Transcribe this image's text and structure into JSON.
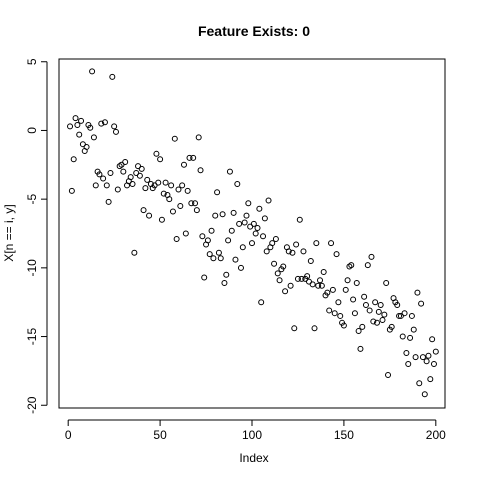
{
  "chart_data": {
    "type": "scatter",
    "title": "Feature Exists: 0",
    "xlabel": "Index",
    "ylabel": "X[n == i, y]",
    "xlim": [
      -5,
      205
    ],
    "ylim": [
      -20.2,
      5.2
    ],
    "grid": false,
    "x_ticks": [
      0,
      50,
      100,
      150,
      200
    ],
    "y_ticks": [
      5,
      0,
      -5,
      -10,
      -15,
      -20
    ],
    "x_tick_labels": [
      "0",
      "50",
      "100",
      "150",
      "200"
    ],
    "y_tick_labels": [
      "5",
      "0",
      "-5",
      "-10",
      "-15",
      "-20"
    ],
    "points": [
      [
        1,
        0.3
      ],
      [
        2,
        -4.4
      ],
      [
        3,
        -2.1
      ],
      [
        4,
        0.9
      ],
      [
        5,
        0.4
      ],
      [
        6,
        -0.3
      ],
      [
        7,
        0.7
      ],
      [
        8,
        -1.0
      ],
      [
        9,
        -1.5
      ],
      [
        10,
        -1.2
      ],
      [
        11,
        0.4
      ],
      [
        12,
        0.2
      ],
      [
        13,
        4.3
      ],
      [
        14,
        -0.5
      ],
      [
        15,
        -4.0
      ],
      [
        16,
        -3.0
      ],
      [
        17,
        -3.2
      ],
      [
        18,
        0.5
      ],
      [
        19,
        -3.5
      ],
      [
        20,
        0.6
      ],
      [
        21,
        -4.0
      ],
      [
        22,
        -5.2
      ],
      [
        23,
        -3.1
      ],
      [
        24,
        3.9
      ],
      [
        25,
        0.3
      ],
      [
        26,
        -0.1
      ],
      [
        27,
        -4.3
      ],
      [
        28,
        -2.6
      ],
      [
        29,
        -2.5
      ],
      [
        30,
        -3.0
      ],
      [
        31,
        -2.3
      ],
      [
        32,
        -4.0
      ],
      [
        33,
        -3.7
      ],
      [
        34,
        -3.4
      ],
      [
        35,
        -3.9
      ],
      [
        36,
        -8.9
      ],
      [
        37,
        -3.1
      ],
      [
        38,
        -2.6
      ],
      [
        39,
        -3.3
      ],
      [
        40,
        -2.8
      ],
      [
        41,
        -5.8
      ],
      [
        42,
        -4.2
      ],
      [
        43,
        -3.6
      ],
      [
        44,
        -6.2
      ],
      [
        45,
        -3.9
      ],
      [
        46,
        -4.2
      ],
      [
        47,
        -4.0
      ],
      [
        48,
        -1.7
      ],
      [
        49,
        -3.8
      ],
      [
        50,
        -2.1
      ],
      [
        51,
        -6.5
      ],
      [
        52,
        -4.6
      ],
      [
        53,
        -3.8
      ],
      [
        54,
        -4.7
      ],
      [
        55,
        -5.0
      ],
      [
        56,
        -4.0
      ],
      [
        57,
        -5.9
      ],
      [
        58,
        -0.6
      ],
      [
        59,
        -7.9
      ],
      [
        60,
        -4.3
      ],
      [
        61,
        -5.5
      ],
      [
        62,
        -4.0
      ],
      [
        63,
        -2.5
      ],
      [
        64,
        -7.5
      ],
      [
        65,
        -4.4
      ],
      [
        66,
        -2.0
      ],
      [
        67,
        -5.3
      ],
      [
        68,
        -2.0
      ],
      [
        69,
        -5.3
      ],
      [
        70,
        -5.8
      ],
      [
        71,
        -0.5
      ],
      [
        72,
        -2.9
      ],
      [
        73,
        -7.7
      ],
      [
        74,
        -10.7
      ],
      [
        75,
        -8.3
      ],
      [
        76,
        -8.0
      ],
      [
        77,
        -9.0
      ],
      [
        78,
        -7.3
      ],
      [
        79,
        -9.3
      ],
      [
        80,
        -6.2
      ],
      [
        81,
        -4.5
      ],
      [
        82,
        -8.9
      ],
      [
        83,
        -9.3
      ],
      [
        84,
        -6.1
      ],
      [
        85,
        -11.1
      ],
      [
        86,
        -10.5
      ],
      [
        87,
        -8.0
      ],
      [
        88,
        -3.0
      ],
      [
        89,
        -7.3
      ],
      [
        90,
        -6.0
      ],
      [
        91,
        -9.4
      ],
      [
        92,
        -3.9
      ],
      [
        93,
        -6.8
      ],
      [
        94,
        -10.0
      ],
      [
        95,
        -8.5
      ],
      [
        96,
        -6.7
      ],
      [
        97,
        -6.2
      ],
      [
        98,
        -5.3
      ],
      [
        99,
        -7.0
      ],
      [
        100,
        -8.2
      ],
      [
        101,
        -6.8
      ],
      [
        102,
        -7.5
      ],
      [
        103,
        -7.1
      ],
      [
        104,
        -5.7
      ],
      [
        105,
        -12.5
      ],
      [
        106,
        -7.7
      ],
      [
        107,
        -6.4
      ],
      [
        108,
        -8.8
      ],
      [
        109,
        -5.1
      ],
      [
        110,
        -8.5
      ],
      [
        111,
        -8.2
      ],
      [
        112,
        -9.7
      ],
      [
        113,
        -7.9
      ],
      [
        114,
        -10.4
      ],
      [
        115,
        -10.9
      ],
      [
        116,
        -10.1
      ],
      [
        117,
        -9.9
      ],
      [
        118,
        -11.7
      ],
      [
        119,
        -8.5
      ],
      [
        120,
        -8.8
      ],
      [
        121,
        -11.3
      ],
      [
        122,
        -8.9
      ],
      [
        123,
        -14.4
      ],
      [
        124,
        -8.3
      ],
      [
        125,
        -10.8
      ],
      [
        126,
        -6.5
      ],
      [
        127,
        -10.8
      ],
      [
        128,
        -8.8
      ],
      [
        129,
        -10.8
      ],
      [
        130,
        -10.6
      ],
      [
        131,
        -11.0
      ],
      [
        132,
        -9.5
      ],
      [
        133,
        -11.2
      ],
      [
        134,
        -14.4
      ],
      [
        135,
        -8.2
      ],
      [
        136,
        -11.3
      ],
      [
        137,
        -10.9
      ],
      [
        138,
        -11.3
      ],
      [
        139,
        -10.3
      ],
      [
        140,
        -12.0
      ],
      [
        141,
        -11.8
      ],
      [
        142,
        -13.1
      ],
      [
        143,
        -8.2
      ],
      [
        144,
        -11.6
      ],
      [
        145,
        -13.3
      ],
      [
        146,
        -9.0
      ],
      [
        147,
        -12.5
      ],
      [
        148,
        -13.5
      ],
      [
        149,
        -14.0
      ],
      [
        150,
        -14.2
      ],
      [
        151,
        -11.6
      ],
      [
        152,
        -10.9
      ],
      [
        153,
        -9.9
      ],
      [
        154,
        -9.8
      ],
      [
        155,
        -12.3
      ],
      [
        156,
        -13.3
      ],
      [
        157,
        -11.1
      ],
      [
        158,
        -14.6
      ],
      [
        159,
        -15.9
      ],
      [
        160,
        -14.3
      ],
      [
        161,
        -12.1
      ],
      [
        162,
        -12.7
      ],
      [
        163,
        -9.8
      ],
      [
        164,
        -13.1
      ],
      [
        165,
        -9.2
      ],
      [
        166,
        -13.9
      ],
      [
        167,
        -12.5
      ],
      [
        168,
        -14.0
      ],
      [
        169,
        -13.2
      ],
      [
        170,
        -12.7
      ],
      [
        171,
        -13.8
      ],
      [
        172,
        -13.4
      ],
      [
        173,
        -11.1
      ],
      [
        174,
        -17.8
      ],
      [
        175,
        -14.5
      ],
      [
        176,
        -14.3
      ],
      [
        177,
        -12.2
      ],
      [
        178,
        -12.5
      ],
      [
        179,
        -12.7
      ],
      [
        180,
        -13.5
      ],
      [
        181,
        -13.5
      ],
      [
        182,
        -15.0
      ],
      [
        183,
        -13.3
      ],
      [
        184,
        -16.2
      ],
      [
        185,
        -17.0
      ],
      [
        186,
        -15.1
      ],
      [
        187,
        -13.5
      ],
      [
        188,
        -14.5
      ],
      [
        189,
        -16.5
      ],
      [
        190,
        -11.8
      ],
      [
        191,
        -18.4
      ],
      [
        192,
        -12.6
      ],
      [
        193,
        -16.5
      ],
      [
        194,
        -19.2
      ],
      [
        195,
        -16.8
      ],
      [
        196,
        -16.4
      ],
      [
        197,
        -18.1
      ],
      [
        198,
        -15.2
      ],
      [
        199,
        -17.0
      ],
      [
        200,
        -16.1
      ]
    ]
  }
}
